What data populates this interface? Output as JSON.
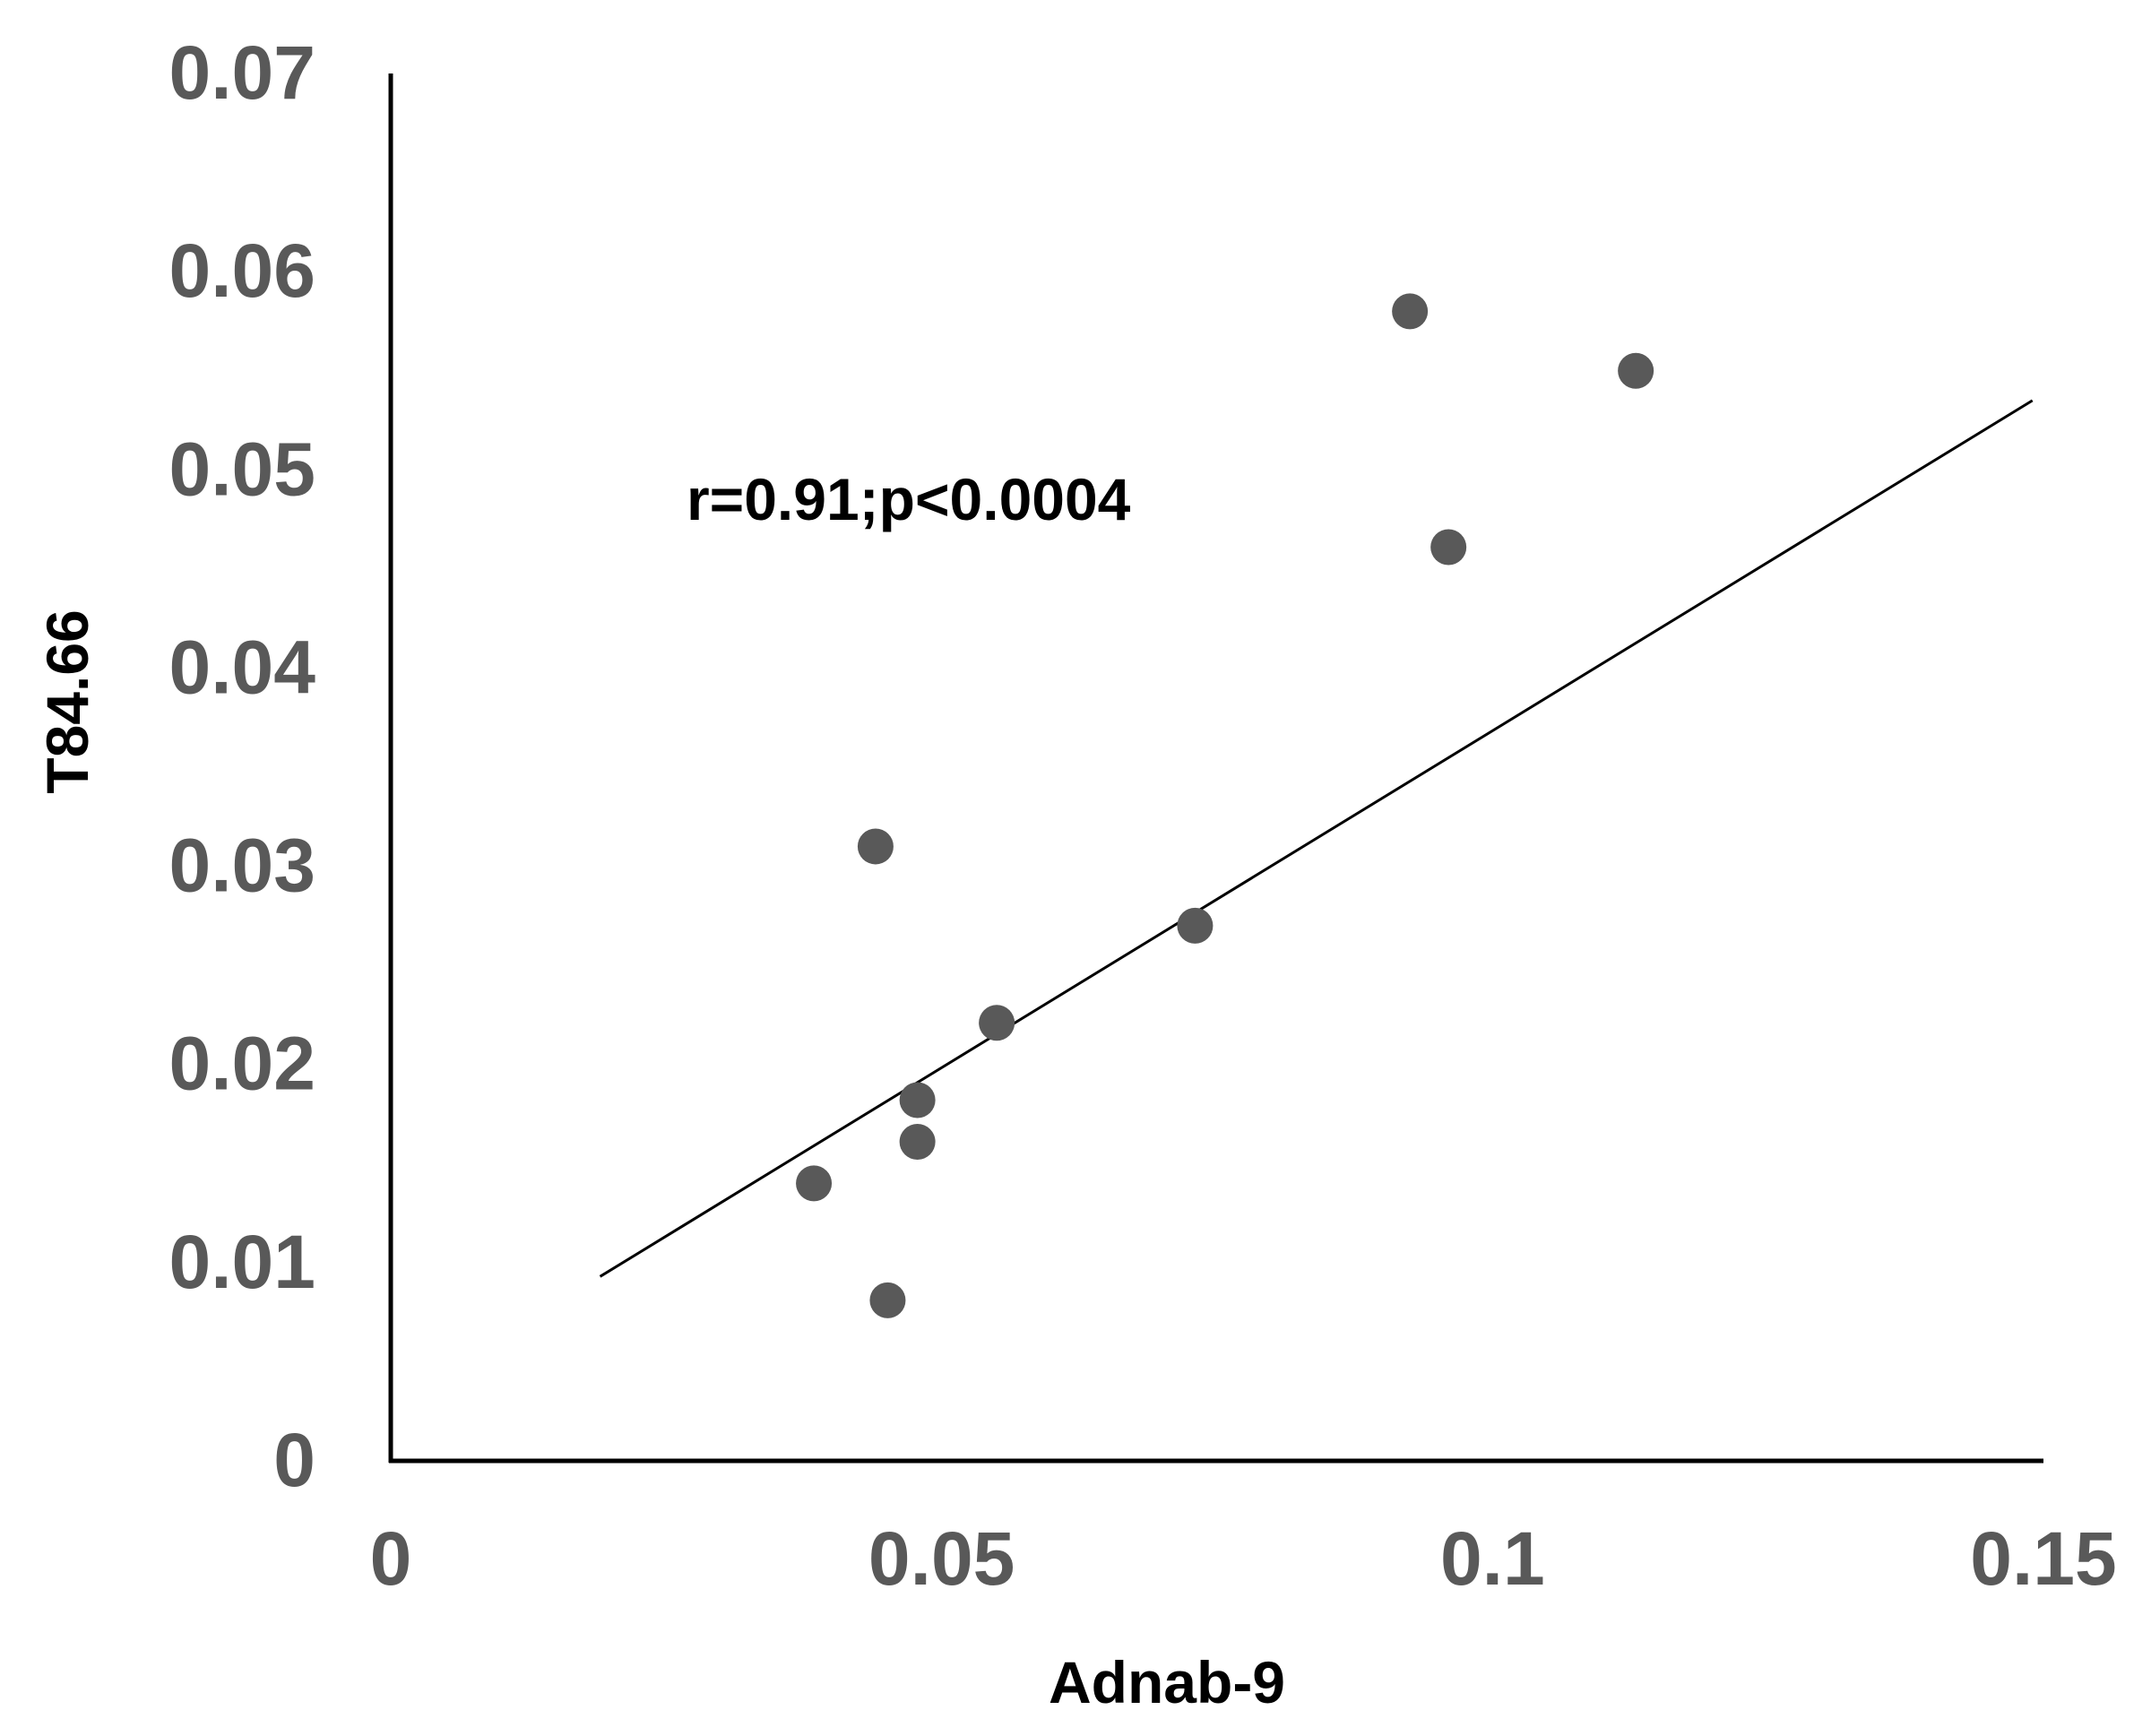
{
  "chart_data": {
    "type": "scatter",
    "xlabel": "Adnab-9",
    "ylabel": "T84.66",
    "xlim": [
      0,
      0.15
    ],
    "ylim": [
      0,
      0.07
    ],
    "x_ticks": [
      "0",
      "0.05",
      "0.1",
      "0.15"
    ],
    "y_ticks": [
      "0",
      "0.01",
      "0.02",
      "0.03",
      "0.04",
      "0.05",
      "0.06",
      "0.07"
    ],
    "annotation": "r=0.91;p<0.0004",
    "grid": false,
    "points": [
      {
        "x": 0.0384,
        "y": 0.014
      },
      {
        "x": 0.044,
        "y": 0.031
      },
      {
        "x": 0.0451,
        "y": 0.0081
      },
      {
        "x": 0.0478,
        "y": 0.0182
      },
      {
        "x": 0.0478,
        "y": 0.0161
      },
      {
        "x": 0.055,
        "y": 0.0221
      },
      {
        "x": 0.073,
        "y": 0.027
      },
      {
        "x": 0.0925,
        "y": 0.058
      },
      {
        "x": 0.096,
        "y": 0.0461
      },
      {
        "x": 0.113,
        "y": 0.055
      }
    ],
    "trendline": {
      "x": [
        0.019,
        0.149
      ],
      "y": [
        0.0093,
        0.0535
      ]
    },
    "colors": {
      "marker": "#595959",
      "axis": "#000000",
      "tick_label": "#595959"
    }
  }
}
